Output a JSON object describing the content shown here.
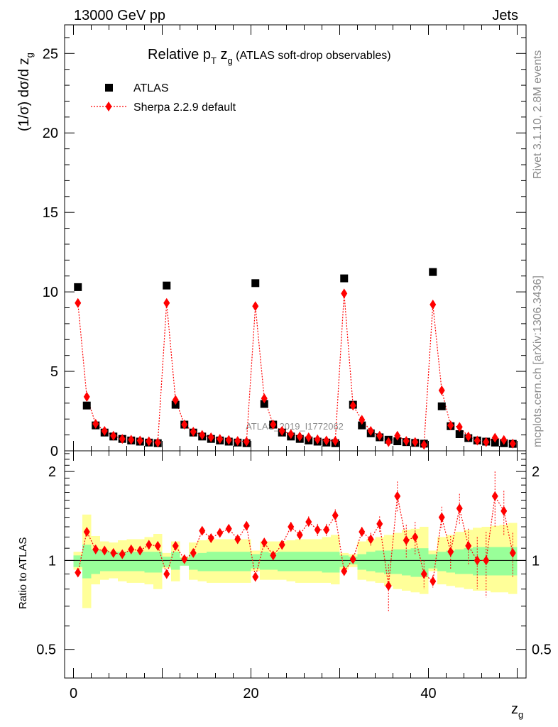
{
  "header": {
    "left": "13000 GeV pp",
    "right": "Jets"
  },
  "side_labels": {
    "rivet": "Rivet 3.1.10,  2.8M events",
    "mcplots": "mcplots.cern.ch [arXiv:1306.3436]"
  },
  "chart_data": [
    {
      "type": "scatter",
      "title": "Relative p_T z_g (ATLAS soft-drop observables)",
      "title_parts": {
        "main": "Relative p",
        "sub1": "T",
        "mid": " z",
        "sub2": "g",
        "tail": " (ATLAS soft-drop observables)"
      },
      "ylabel": "(1/σ) dσ/d z_g",
      "ylabel_parts": {
        "main": "(1/σ) dσ/d z",
        "sub": "g"
      },
      "watermark": "ATLAS_2019_I1772062",
      "xlim": [
        -1,
        51
      ],
      "ylim": [
        0,
        26.8
      ],
      "yticks": [
        0,
        5,
        10,
        15,
        20,
        25
      ],
      "legend_placement": "top-left",
      "colors": {
        "atlas": "#000000",
        "sherpa": "#ff0000"
      },
      "series": [
        {
          "name": "ATLAS",
          "marker": "square",
          "x": [
            0.5,
            1.5,
            2.5,
            3.5,
            4.5,
            5.5,
            6.5,
            7.5,
            8.5,
            9.5,
            10.5,
            11.5,
            12.5,
            13.5,
            14.5,
            15.5,
            16.5,
            17.5,
            18.5,
            19.5,
            20.5,
            21.5,
            22.5,
            23.5,
            24.5,
            25.5,
            26.5,
            27.5,
            28.5,
            29.5,
            30.5,
            31.5,
            32.5,
            33.5,
            34.5,
            35.5,
            36.5,
            37.5,
            38.5,
            39.5,
            40.5,
            41.5,
            42.5,
            43.5,
            44.5,
            45.5,
            46.5,
            47.5,
            48.5,
            49.5
          ],
          "y": [
            10.3,
            2.85,
            1.6,
            1.15,
            0.9,
            0.75,
            0.65,
            0.58,
            0.52,
            0.48,
            10.4,
            2.9,
            1.65,
            1.15,
            0.9,
            0.75,
            0.65,
            0.58,
            0.52,
            0.48,
            10.55,
            2.95,
            1.65,
            1.15,
            0.9,
            0.75,
            0.65,
            0.58,
            0.52,
            0.48,
            10.85,
            2.9,
            1.6,
            1.1,
            0.85,
            0.7,
            0.6,
            0.55,
            0.5,
            0.45,
            11.25,
            2.8,
            1.55,
            1.05,
            0.8,
            0.65,
            0.58,
            0.52,
            0.48,
            0.44
          ]
        },
        {
          "name": "Sherpa 2.2.9 default",
          "marker": "diamond",
          "x": [
            0.5,
            1.5,
            2.5,
            3.5,
            4.5,
            5.5,
            6.5,
            7.5,
            8.5,
            9.5,
            10.5,
            11.5,
            12.5,
            13.5,
            14.5,
            15.5,
            16.5,
            17.5,
            18.5,
            19.5,
            20.5,
            21.5,
            22.5,
            23.5,
            24.5,
            25.5,
            26.5,
            27.5,
            28.5,
            29.5,
            30.5,
            31.5,
            32.5,
            33.5,
            34.5,
            35.5,
            36.5,
            37.5,
            38.5,
            39.5,
            40.5,
            41.5,
            42.5,
            43.5,
            44.5,
            45.5,
            46.5,
            47.5,
            48.5,
            49.5
          ],
          "y": [
            9.3,
            3.4,
            1.7,
            1.25,
            0.95,
            0.75,
            0.7,
            0.65,
            0.6,
            0.52,
            9.3,
            3.2,
            1.65,
            1.2,
            1.0,
            0.85,
            0.75,
            0.68,
            0.62,
            0.58,
            9.1,
            3.3,
            1.65,
            1.25,
            1.05,
            0.9,
            0.85,
            0.72,
            0.65,
            0.62,
            9.9,
            2.85,
            1.95,
            1.25,
            0.95,
            0.55,
            0.95,
            0.62,
            0.55,
            0.38,
            9.2,
            3.8,
            1.6,
            1.5,
            0.9,
            0.65,
            0.55,
            0.82,
            0.68,
            0.45
          ]
        }
      ]
    },
    {
      "type": "scatter",
      "ylabel": "Ratio to ATLAS",
      "xlabel": "z_g",
      "xlabel_parts": {
        "main": "z",
        "sub": "g"
      },
      "xlim": [
        -1,
        51
      ],
      "ylim": [
        0.4,
        2.35
      ],
      "yticks": [
        0.5,
        1,
        2
      ],
      "xticks": [
        0,
        20,
        40
      ],
      "colors": {
        "band_inner": "#99ff99",
        "band_outer": "#ffff99",
        "sherpa": "#ff0000",
        "reference_line": "#000000"
      },
      "bands": {
        "x": [
          0.5,
          1.5,
          2.5,
          3.5,
          4.5,
          5.5,
          6.5,
          7.5,
          8.5,
          9.5,
          10.5,
          11.5,
          12.5,
          13.5,
          14.5,
          15.5,
          16.5,
          17.5,
          18.5,
          19.5,
          20.5,
          21.5,
          22.5,
          23.5,
          24.5,
          25.5,
          26.5,
          27.5,
          28.5,
          29.5,
          30.5,
          31.5,
          32.5,
          33.5,
          34.5,
          35.5,
          36.5,
          37.5,
          38.5,
          39.5,
          40.5,
          41.5,
          42.5,
          43.5,
          44.5,
          45.5,
          46.5,
          47.5,
          48.5,
          49.5
        ],
        "inner_low": [
          0.95,
          0.87,
          0.9,
          0.92,
          0.92,
          0.92,
          0.92,
          0.92,
          0.91,
          0.91,
          0.95,
          0.93,
          0.96,
          0.93,
          0.92,
          0.92,
          0.92,
          0.92,
          0.92,
          0.92,
          0.94,
          0.93,
          0.93,
          0.92,
          0.92,
          0.92,
          0.92,
          0.92,
          0.91,
          0.91,
          0.95,
          0.97,
          0.93,
          0.92,
          0.91,
          0.9,
          0.9,
          0.89,
          0.88,
          0.88,
          0.94,
          0.92,
          0.91,
          0.9,
          0.9,
          0.89,
          0.89,
          0.89,
          0.89,
          0.89
        ],
        "inner_high": [
          1.04,
          1.13,
          1.09,
          1.08,
          1.07,
          1.07,
          1.07,
          1.07,
          1.07,
          1.07,
          1.03,
          1.07,
          1.02,
          1.05,
          1.06,
          1.07,
          1.07,
          1.07,
          1.07,
          1.07,
          1.05,
          1.07,
          1.06,
          1.07,
          1.07,
          1.07,
          1.07,
          1.07,
          1.07,
          1.07,
          1.04,
          1.03,
          1.05,
          1.07,
          1.08,
          1.08,
          1.09,
          1.09,
          1.1,
          1.1,
          1.05,
          1.07,
          1.08,
          1.09,
          1.1,
          1.11,
          1.11,
          1.11,
          1.11,
          1.11
        ],
        "outer_low": [
          0.93,
          0.69,
          0.83,
          0.86,
          0.87,
          0.85,
          0.84,
          0.84,
          0.83,
          0.8,
          0.94,
          0.85,
          0.98,
          0.86,
          0.85,
          0.84,
          0.84,
          0.84,
          0.84,
          0.84,
          0.92,
          0.86,
          0.86,
          0.86,
          0.85,
          0.84,
          0.84,
          0.84,
          0.84,
          0.83,
          0.93,
          0.95,
          0.86,
          0.85,
          0.84,
          0.82,
          0.8,
          0.79,
          0.78,
          0.77,
          0.92,
          0.83,
          0.82,
          0.81,
          0.8,
          0.79,
          0.79,
          0.78,
          0.78,
          0.77
        ],
        "outer_high": [
          1.07,
          1.43,
          1.21,
          1.16,
          1.15,
          1.17,
          1.18,
          1.18,
          1.2,
          1.23,
          1.06,
          1.16,
          1.03,
          1.15,
          1.17,
          1.18,
          1.18,
          1.18,
          1.18,
          1.18,
          1.08,
          1.16,
          1.16,
          1.16,
          1.17,
          1.18,
          1.18,
          1.18,
          1.2,
          1.22,
          1.06,
          1.05,
          1.16,
          1.18,
          1.2,
          1.22,
          1.24,
          1.27,
          1.28,
          1.3,
          1.08,
          1.2,
          1.22,
          1.25,
          1.27,
          1.29,
          1.3,
          1.31,
          1.32,
          1.34
        ]
      },
      "series": [
        {
          "name": "Sherpa 2.2.9 default",
          "marker": "diamond",
          "x": [
            0.5,
            1.5,
            2.5,
            3.5,
            4.5,
            5.5,
            6.5,
            7.5,
            8.5,
            9.5,
            10.5,
            11.5,
            12.5,
            13.5,
            14.5,
            15.5,
            16.5,
            17.5,
            18.5,
            19.5,
            20.5,
            21.5,
            22.5,
            23.5,
            24.5,
            25.5,
            26.5,
            27.5,
            28.5,
            29.5,
            30.5,
            31.5,
            32.5,
            33.5,
            34.5,
            35.5,
            36.5,
            37.5,
            38.5,
            39.5,
            40.5,
            41.5,
            42.5,
            43.5,
            44.5,
            45.5,
            46.5,
            47.5,
            48.5,
            49.5
          ],
          "y": [
            0.91,
            1.25,
            1.09,
            1.08,
            1.06,
            1.05,
            1.09,
            1.08,
            1.13,
            1.12,
            0.9,
            1.12,
            1.01,
            1.06,
            1.26,
            1.19,
            1.24,
            1.28,
            1.18,
            1.31,
            0.88,
            1.15,
            1.04,
            1.13,
            1.3,
            1.22,
            1.35,
            1.27,
            1.27,
            1.42,
            0.92,
            1.01,
            1.25,
            1.18,
            1.33,
            0.82,
            1.65,
            1.17,
            1.2,
            0.9,
            0.85,
            1.4,
            1.07,
            1.5,
            1.12,
            1.0,
            1.0,
            1.65,
            1.47,
            1.06
          ],
          "err": [
            0.02,
            0.03,
            0.03,
            0.03,
            0.03,
            0.03,
            0.03,
            0.03,
            0.03,
            0.03,
            0.02,
            0.03,
            0.02,
            0.03,
            0.04,
            0.04,
            0.04,
            0.04,
            0.04,
            0.04,
            0.02,
            0.03,
            0.03,
            0.04,
            0.05,
            0.05,
            0.06,
            0.06,
            0.06,
            0.07,
            0.02,
            0.03,
            0.05,
            0.06,
            0.08,
            0.15,
            0.2,
            0.15,
            0.15,
            0.1,
            0.04,
            0.12,
            0.14,
            0.18,
            0.16,
            0.2,
            0.25,
            0.35,
            0.25,
            0.18
          ]
        }
      ]
    }
  ]
}
